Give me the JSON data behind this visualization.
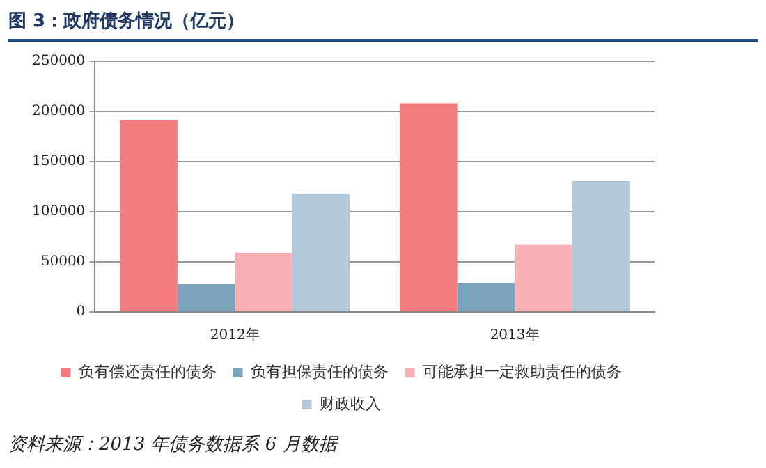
{
  "chart_data": {
    "type": "bar",
    "title": "图 3：政府债务情况（亿元）",
    "categories": [
      "2012年",
      "2013年"
    ],
    "series": [
      {
        "name": "负有偿还责任的债务",
        "color": "#f47c7f",
        "values": [
          191000,
          208000
        ]
      },
      {
        "name": "负有担保责任的债务",
        "color": "#7ba3be",
        "values": [
          27700,
          29000
        ]
      },
      {
        "name": "可能承担一定救助责任的债务",
        "color": "#f9b0b4",
        "values": [
          59000,
          67000
        ]
      },
      {
        "name": "财政收入",
        "color": "#b3c8d9",
        "values": [
          118000,
          130500
        ]
      }
    ],
    "ylim": [
      0,
      250000
    ],
    "yticks": [
      0,
      50000,
      100000,
      150000,
      200000,
      250000
    ],
    "grid": "y",
    "legend": "bottom",
    "annotations": [
      "资料来源：2013 年债务数据系 6 月数据"
    ]
  }
}
